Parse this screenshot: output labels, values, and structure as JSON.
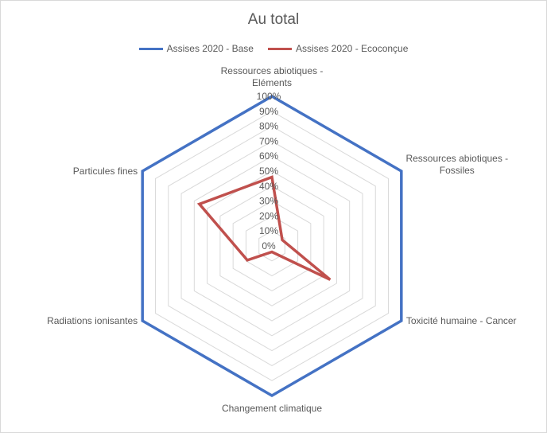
{
  "chart_data": {
    "type": "radar",
    "title": "Au total",
    "axes": [
      "Ressources abiotiques - Eléments",
      "Ressources abiotiques - Fossiles",
      "Toxicité humaine - Cancer",
      "Changement climatique",
      "Radiations ionisantes",
      "Particules fines"
    ],
    "axis_label_lines": [
      [
        "Ressources abiotiques -",
        "Eléments"
      ],
      [
        "Ressources abiotiques -",
        "Fossiles"
      ],
      [
        "Toxicité humaine - Cancer"
      ],
      [
        "Changement climatique"
      ],
      [
        "Radiations ionisantes"
      ],
      [
        "Particules fines"
      ]
    ],
    "ticks": [
      "0%",
      "10%",
      "20%",
      "30%",
      "40%",
      "50%",
      "60%",
      "70%",
      "80%",
      "90%",
      "100%"
    ],
    "range": [
      0,
      1
    ],
    "grid": true,
    "legend_position": "top",
    "series": [
      {
        "name": "Assises 2020 - Base",
        "color": "#4472C4",
        "values": [
          1,
          1,
          1,
          1,
          1,
          1
        ]
      },
      {
        "name": "Assises 2020 - Ecoconçue",
        "color": "#C0504D",
        "values": [
          0.46,
          0.08,
          0.45,
          0.04,
          0.19,
          0.56
        ]
      }
    ]
  }
}
